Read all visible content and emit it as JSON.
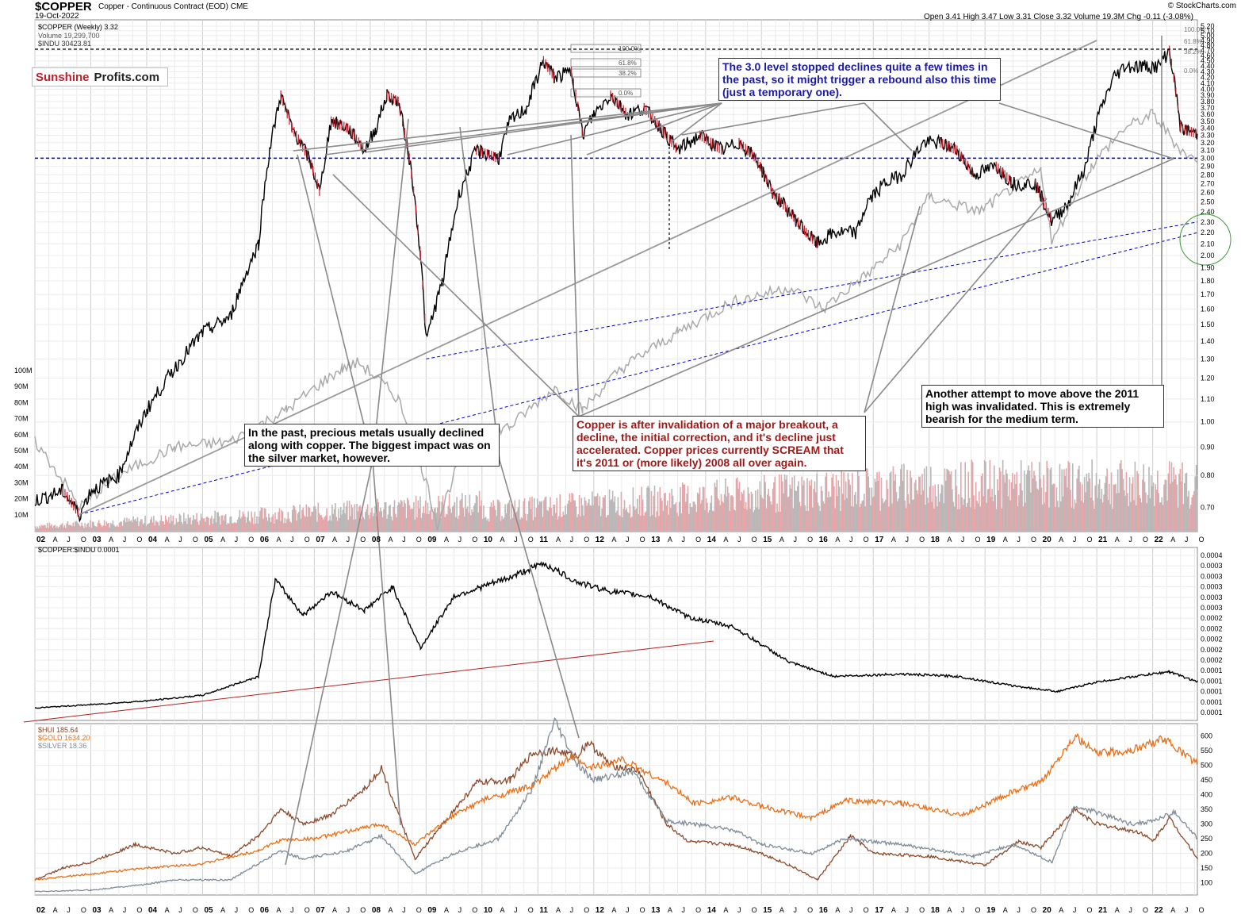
{
  "header": {
    "symbol": "$COPPER",
    "description": "Copper - Continuous Contract (EOD)",
    "exchange": "CME",
    "date": "19-Oct-2022",
    "ohlc": "Open 3.41  High 3.47  Low 3.31  Close 3.32  Volume 19.3M  Chg -0.11 (-3.08%)",
    "credit": "© StockCharts.com"
  },
  "logo": {
    "part1": "Sunshine",
    "part2": "Profits.com"
  },
  "legend_top": [
    "$COPPER (Weekly) 3.32",
    "Volume 19,299,700",
    "$INDU 30423.81"
  ],
  "legend_mid": "$COPPER:$INDU 0.0001",
  "legend_bottom": [
    "$HUI 185.64",
    "$GOLD 1634.20",
    "$SILVER 18.36"
  ],
  "annotations": {
    "blue": "The 3.0 level stopped declines quite a few times in the past, so it might trigger a rebound also this time (just a temporary one).",
    "left": "In the past, precious metals usually declined along with copper. The biggest impact was on the silver market, however.",
    "red": "Copper is after invalidation of a major breakout, a decline, the initial correction, and it's decline just accelerated. Copper prices currently SCREAM that it's 2011 or (more likely) 2008 all over again.",
    "right": "Another attempt to move above the 2011 high was invalidated. This is extremely bearish for the medium term."
  },
  "fib_labels": [
    "100.0%",
    "61.8%",
    "38.2%",
    "0.0%"
  ],
  "colors": {
    "copper": "#000000",
    "down": "#c0202b",
    "indu": "#aaaaaa",
    "hui": "#8b4a2b",
    "gold": "#e8701a",
    "silver": "#7f8c99",
    "ratio_trend": "#b22222",
    "support": "#0000cc"
  },
  "chart_data": [
    {
      "type": "line",
      "title": "$COPPER (Weekly)",
      "scale": "log",
      "ylim": [
        0.65,
        5.2
      ],
      "y_ticks": [
        "5.20",
        "5.10",
        "5.00",
        "4.90",
        "4.80",
        "4.70",
        "4.60",
        "4.50",
        "4.40",
        "4.30",
        "4.20",
        "4.10",
        "4.00",
        "3.90",
        "3.80",
        "3.70",
        "3.60",
        "3.50",
        "3.40",
        "3.30",
        "3.20",
        "3.10",
        "3.00",
        "2.90",
        "2.80",
        "2.70",
        "2.60",
        "2.50",
        "2.40",
        "2.30",
        "2.20",
        "2.10",
        "2.00",
        "1.90",
        "1.80",
        "1.70",
        "1.60",
        "1.50",
        "1.40",
        "1.30",
        "1.20",
        "1.10",
        "1.00",
        "0.90",
        "0.80",
        "0.70"
      ],
      "volume_ticks": [
        "100M",
        "90M",
        "80M",
        "70M",
        "60M",
        "50M",
        "40M",
        "30M",
        "20M",
        "10M"
      ],
      "x_labels": [
        "02",
        "A",
        "J",
        "O",
        "03",
        "A",
        "J",
        "O",
        "04",
        "A",
        "J",
        "O",
        "05",
        "A",
        "J",
        "O",
        "06",
        "A",
        "J",
        "O",
        "07",
        "A",
        "J",
        "O",
        "08",
        "A",
        "J",
        "O",
        "09",
        "A",
        "J",
        "O",
        "10",
        "A",
        "J",
        "O",
        "11",
        "A",
        "J",
        "O",
        "12",
        "A",
        "J",
        "O",
        "13",
        "A",
        "J",
        "O",
        "14",
        "A",
        "J",
        "O",
        "15",
        "A",
        "J",
        "O",
        "16",
        "A",
        "J",
        "O",
        "17",
        "A",
        "J",
        "O",
        "18",
        "A",
        "J",
        "O",
        "19",
        "A",
        "J",
        "O",
        "20",
        "A",
        "J",
        "O",
        "21",
        "A",
        "J",
        "O",
        "22",
        "A",
        "J",
        "O"
      ],
      "horizontal_level": 3.0,
      "series": [
        {
          "name": "$COPPER",
          "x": [
            2002.0,
            2002.5,
            2002.8,
            2003.0,
            2003.5,
            2004.0,
            2004.5,
            2005.0,
            2005.5,
            2006.0,
            2006.2,
            2006.4,
            2006.6,
            2006.9,
            2007.1,
            2007.3,
            2007.6,
            2007.9,
            2008.1,
            2008.3,
            2008.5,
            2008.7,
            2008.9,
            2009.0,
            2009.3,
            2009.6,
            2009.9,
            2010.3,
            2010.5,
            2010.8,
            2011.1,
            2011.3,
            2011.6,
            2011.8,
            2012.0,
            2012.3,
            2012.6,
            2012.9,
            2013.2,
            2013.5,
            2013.9,
            2014.3,
            2014.6,
            2014.9,
            2015.2,
            2015.5,
            2015.8,
            2016.0,
            2016.3,
            2016.7,
            2016.9,
            2017.2,
            2017.5,
            2017.9,
            2018.2,
            2018.5,
            2018.8,
            2019.2,
            2019.5,
            2019.9,
            2020.2,
            2020.5,
            2020.8,
            2021.0,
            2021.3,
            2021.5,
            2021.8,
            2022.1,
            2022.3,
            2022.5,
            2022.8
          ],
          "values": [
            0.72,
            0.75,
            0.68,
            0.75,
            0.8,
            1.05,
            1.25,
            1.45,
            1.55,
            2.1,
            3.1,
            3.9,
            3.4,
            3.0,
            2.6,
            3.5,
            3.4,
            3.1,
            3.4,
            3.9,
            3.8,
            3.0,
            2.0,
            1.4,
            1.8,
            2.6,
            3.1,
            3.0,
            3.5,
            3.7,
            4.5,
            4.2,
            4.3,
            3.3,
            3.6,
            3.9,
            3.6,
            3.7,
            3.4,
            3.1,
            3.3,
            3.1,
            3.2,
            3.0,
            2.6,
            2.4,
            2.2,
            2.1,
            2.2,
            2.2,
            2.5,
            2.7,
            2.8,
            3.2,
            3.2,
            3.1,
            2.8,
            2.9,
            2.7,
            2.7,
            2.3,
            2.5,
            2.9,
            3.5,
            4.2,
            4.4,
            4.4,
            4.4,
            4.7,
            3.4,
            3.32
          ]
        },
        {
          "name": "$INDU",
          "x": [
            2002.0,
            2002.8,
            2003.5,
            2004.5,
            2005.5,
            2006.5,
            2007.5,
            2007.8,
            2008.5,
            2009.2,
            2009.8,
            2010.5,
            2011.3,
            2011.8,
            2012.5,
            2013.5,
            2014.5,
            2015.5,
            2016.1,
            2016.9,
            2017.5,
            2018.0,
            2018.9,
            2019.5,
            2020.0,
            2020.2,
            2020.9,
            2021.5,
            2022.0,
            2022.5,
            2022.8
          ],
          "values": [
            0.92,
            0.7,
            0.8,
            0.9,
            0.92,
            1.05,
            1.25,
            1.28,
            1.1,
            0.65,
            0.95,
            0.98,
            1.15,
            1.05,
            1.25,
            1.45,
            1.65,
            1.75,
            1.6,
            1.85,
            2.1,
            2.55,
            2.4,
            2.65,
            2.85,
            2.1,
            2.9,
            3.4,
            3.6,
            3.1,
            2.95
          ]
        }
      ]
    },
    {
      "type": "line",
      "title": "$COPPER:$INDU",
      "y_ticks": [
        "0.0004",
        "0.0003",
        "0.0003",
        "0.0003",
        "0.0003",
        "0.0003",
        "0.0002",
        "0.0002",
        "0.0002",
        "0.0002",
        "0.0002",
        "0.0001",
        "0.0001",
        "0.0001",
        "0.0001",
        "0.0001"
      ],
      "series": [
        {
          "name": "$COPPER:$INDU",
          "x": [
            2002.0,
            2003.0,
            2004.0,
            2005.0,
            2006.0,
            2006.3,
            2006.8,
            2007.3,
            2007.9,
            2008.4,
            2008.9,
            2009.5,
            2010.5,
            2011.1,
            2011.7,
            2012.3,
            2013.0,
            2013.7,
            2014.5,
            2015.5,
            2016.3,
            2017.5,
            2018.5,
            2019.5,
            2020.3,
            2021.0,
            2021.8,
            2022.3,
            2022.8
          ],
          "values": [
            5.3e-05,
            6e-05,
            6.8e-05,
            8e-05,
            0.00012,
            0.000325,
            0.00025,
            0.0003,
            0.00026,
            0.00031,
            0.00018,
            0.00029,
            0.00033,
            0.00036,
            0.00032,
            0.0003,
            0.00029,
            0.000245,
            0.000225,
            0.00015,
            0.00012,
            0.000125,
            0.00012,
            0.0001,
            8.8e-05,
            0.000108,
            0.000122,
            0.00013,
            0.000108
          ]
        }
      ]
    },
    {
      "type": "line",
      "y_ticks": [
        "600",
        "550",
        "500",
        "450",
        "400",
        "350",
        "300",
        "250",
        "200",
        "150",
        "100"
      ],
      "series": [
        {
          "name": "$HUI",
          "x": [
            2002.0,
            2002.5,
            2003.0,
            2003.8,
            2004.5,
            2005.0,
            2005.5,
            2006.0,
            2006.4,
            2006.8,
            2007.3,
            2007.9,
            2008.2,
            2008.8,
            2009.3,
            2009.9,
            2010.5,
            2010.9,
            2011.3,
            2011.7,
            2011.9,
            2012.3,
            2012.8,
            2013.3,
            2013.7,
            2014.5,
            2015.0,
            2015.5,
            2016.0,
            2016.6,
            2017.0,
            2018.0,
            2019.0,
            2019.6,
            2020.0,
            2020.6,
            2021.0,
            2021.8,
            2022.0,
            2022.3,
            2022.8
          ],
          "values": [
            110,
            150,
            170,
            230,
            200,
            220,
            190,
            260,
            350,
            300,
            330,
            420,
            490,
            180,
            300,
            440,
            450,
            540,
            550,
            530,
            580,
            500,
            480,
            300,
            240,
            230,
            200,
            160,
            110,
            260,
            200,
            190,
            160,
            240,
            220,
            350,
            300,
            270,
            240,
            320,
            185
          ]
        },
        {
          "name": "$GOLD",
          "x": [
            2002.0,
            2003.0,
            2004.0,
            2005.0,
            2006.0,
            2006.4,
            2007.0,
            2008.2,
            2008.8,
            2009.5,
            2010.0,
            2010.9,
            2011.6,
            2011.9,
            2012.5,
            2013.3,
            2013.8,
            2014.5,
            2015.0,
            2015.9,
            2016.5,
            2017.5,
            2018.6,
            2019.5,
            2020.0,
            2020.6,
            2021.0,
            2021.6,
            2022.2,
            2022.8
          ],
          "values": [
            110,
            130,
            150,
            165,
            210,
            245,
            250,
            300,
            230,
            330,
            380,
            430,
            530,
            490,
            520,
            440,
            370,
            390,
            360,
            320,
            380,
            370,
            330,
            410,
            440,
            600,
            540,
            550,
            590,
            505
          ]
        },
        {
          "name": "$SILVER",
          "x": [
            2002.0,
            2003.0,
            2004.0,
            2004.5,
            2005.5,
            2006.4,
            2006.8,
            2007.6,
            2008.2,
            2008.8,
            2009.5,
            2010.3,
            2010.9,
            2011.3,
            2011.7,
            2012.0,
            2012.7,
            2013.3,
            2013.8,
            2014.5,
            2015.0,
            2015.9,
            2016.5,
            2017.5,
            2018.8,
            2019.5,
            2020.2,
            2020.6,
            2021.0,
            2021.6,
            2022.0,
            2022.4,
            2022.8
          ],
          "values": [
            70,
            75,
            95,
            110,
            110,
            210,
            180,
            210,
            260,
            130,
            200,
            250,
            420,
            650,
            500,
            450,
            480,
            310,
            300,
            280,
            230,
            200,
            250,
            230,
            190,
            230,
            170,
            360,
            340,
            300,
            310,
            340,
            250
          ]
        }
      ]
    }
  ]
}
